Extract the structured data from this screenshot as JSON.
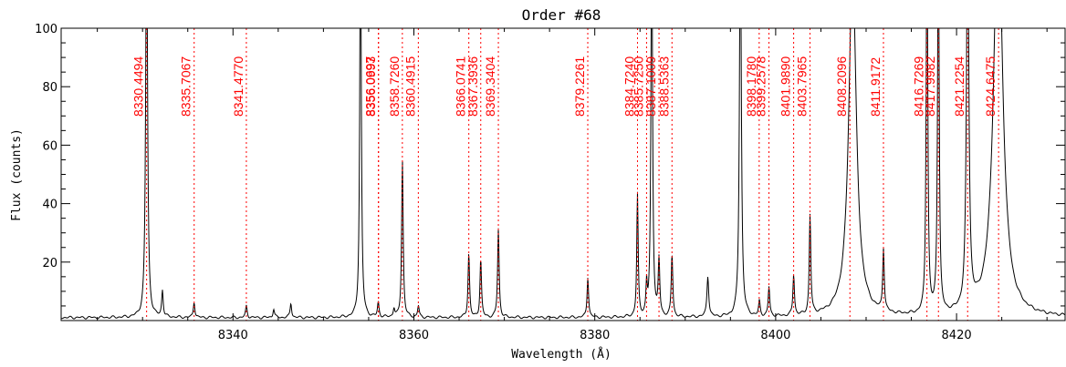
{
  "chart_data": {
    "type": "line",
    "title": "Order #68",
    "xlabel": "Wavelength (Å)",
    "ylabel": "Flux (counts)",
    "xlim": [
      8321,
      8432
    ],
    "ylim": [
      0,
      100
    ],
    "xticks": [
      8340,
      8360,
      8380,
      8400,
      8420
    ],
    "yticks": [
      20,
      40,
      60,
      80,
      100
    ],
    "grid": false,
    "colors": {
      "spectrum": "#000000",
      "reference": "#ff0000"
    },
    "series": [
      {
        "emission_peaks": [
          {
            "x": 8330.45,
            "y": 140,
            "w": 0.12
          },
          {
            "x": 8332.2,
            "y": 9,
            "w": 0.1
          },
          {
            "x": 8335.7,
            "y": 5.5,
            "w": 0.1
          },
          {
            "x": 8341.48,
            "y": 4,
            "w": 0.1
          },
          {
            "x": 8344.5,
            "y": 3,
            "w": 0.1
          },
          {
            "x": 8346.4,
            "y": 5,
            "w": 0.1
          },
          {
            "x": 8354.1,
            "y": 140,
            "w": 0.1
          },
          {
            "x": 8356.06,
            "y": 5,
            "w": 0.1
          },
          {
            "x": 8357.8,
            "y": 3,
            "w": 0.1
          },
          {
            "x": 8358.73,
            "y": 54,
            "w": 0.1
          },
          {
            "x": 8360.5,
            "y": 4,
            "w": 0.1
          },
          {
            "x": 8366.07,
            "y": 22,
            "w": 0.1
          },
          {
            "x": 8367.39,
            "y": 20,
            "w": 0.1
          },
          {
            "x": 8369.34,
            "y": 30.5,
            "w": 0.1
          },
          {
            "x": 8379.23,
            "y": 14,
            "w": 0.1
          },
          {
            "x": 8384.72,
            "y": 42,
            "w": 0.09
          },
          {
            "x": 8385.73,
            "y": 10,
            "w": 0.08
          },
          {
            "x": 8386.3,
            "y": 140,
            "w": 0.1
          },
          {
            "x": 8387.1,
            "y": 19,
            "w": 0.1
          },
          {
            "x": 8388.54,
            "y": 21.5,
            "w": 0.1
          },
          {
            "x": 8392.5,
            "y": 14,
            "w": 0.12
          },
          {
            "x": 8396.1,
            "y": 140,
            "w": 0.12
          },
          {
            "x": 8398.2,
            "y": 5,
            "w": 0.1
          },
          {
            "x": 8399.26,
            "y": 10,
            "w": 0.1
          },
          {
            "x": 8401.99,
            "y": 14,
            "w": 0.1
          },
          {
            "x": 8403.8,
            "y": 34,
            "w": 0.1
          },
          {
            "x": 8408.5,
            "y": 120,
            "w": 0.5
          },
          {
            "x": 8411.92,
            "y": 21.5,
            "w": 0.1
          },
          {
            "x": 8416.73,
            "y": 140,
            "w": 0.1
          },
          {
            "x": 8417.99,
            "y": 140,
            "w": 0.1
          },
          {
            "x": 8421.23,
            "y": 140,
            "w": 0.15
          },
          {
            "x": 8424.6,
            "y": 140,
            "w": 0.6
          }
        ],
        "continuum": 1
      },
      {
        "reference_lines": [
          8330.4494,
          8335.7067,
          8341.477,
          8356.0697,
          8356.0993,
          8358.726,
          8360.4915,
          8366.0741,
          8367.3936,
          8369.3404,
          8379.2261,
          8384.724,
          8385.725,
          8387.1009,
          8388.5363,
          8398.178,
          8399.2578,
          8401.989,
          8403.7965,
          8408.2096,
          8411.9172,
          8416.7269,
          8417.9982,
          8421.2254,
          8424.6475
        ],
        "labels": [
          "8330.4494",
          "8335.7067",
          "8341.4770",
          "8356.0697",
          "8356.0993",
          "8358.7260",
          "8360.4915",
          "8366.0741",
          "8367.3936",
          "8369.3404",
          "8379.2261",
          "8384.7240",
          "8385.7250",
          "8387.1009",
          "8388.5363",
          "8398.1780",
          "8399.2578",
          "8401.9890",
          "8403.7965",
          "8408.2096",
          "8411.9172",
          "8416.7269",
          "8417.9982",
          "8421.2254",
          "8424.6475"
        ]
      }
    ]
  }
}
